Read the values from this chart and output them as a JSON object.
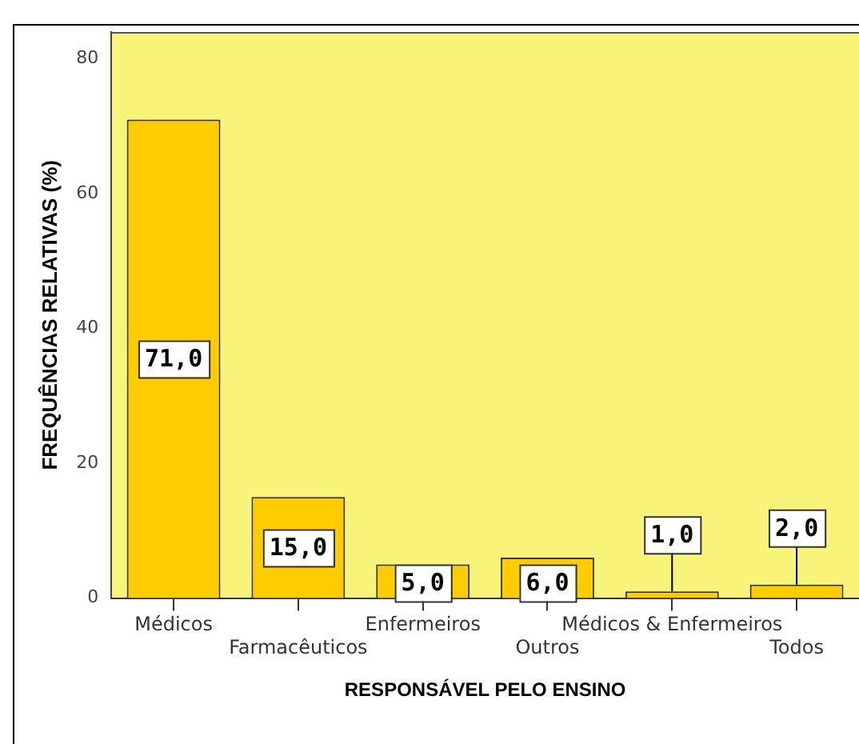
{
  "chart_data": {
    "type": "bar",
    "xlabel": "RESPONSÁVEL PELO ENSINO",
    "ylabel": "FREQUÊNCIAS RELATIVAS (%)",
    "categories": [
      "Médicos",
      "Farmacêuticos",
      "Enfermeiros",
      "Outros",
      "Médicos & Enfermeiros",
      "Todos"
    ],
    "values": [
      71,
      15,
      5,
      6,
      1,
      2
    ],
    "value_labels": [
      "71,0",
      "15,0",
      "5,0",
      "6,0",
      "1,0",
      "2,0"
    ],
    "color": "#ffcc00",
    "ylim": [
      0,
      84
    ],
    "yticks": [
      0,
      20,
      40,
      60,
      80
    ],
    "grid": false,
    "legend": false
  }
}
